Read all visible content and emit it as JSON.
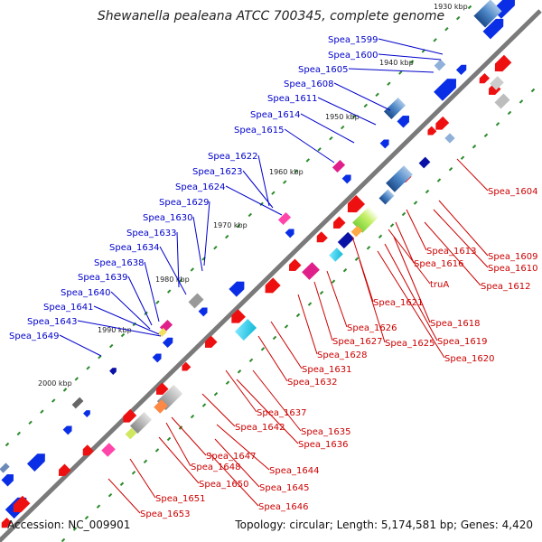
{
  "title": "Shewanella pealeana ATCC 700345, complete genome",
  "accession": "Accession: NC_009901",
  "topology": "Topology: circular; Length: 5,174,581 bp; Genes: 4,420",
  "colors": {
    "plus_label": "#0000cc",
    "minus_label": "#cc0000",
    "backbone": "#777777",
    "tick": "#2a8a2a"
  },
  "kbp_labels": [
    "1930 kbp",
    "1940 kbp",
    "1950 kbp",
    "1960 kbp",
    "1970 kbp",
    "1980 kbp",
    "1990 kbp",
    "2000 kbp"
  ],
  "plus_genes": [
    "Spea_1599",
    "Spea_1600",
    "Spea_1605",
    "Spea_1608",
    "Spea_1611",
    "Spea_1614",
    "Spea_1615",
    "Spea_1622",
    "Spea_1623",
    "Spea_1624",
    "Spea_1629",
    "Spea_1630",
    "Spea_1633",
    "Spea_1634",
    "Spea_1638",
    "Spea_1639",
    "Spea_1640",
    "Spea_1641",
    "Spea_1643",
    "Spea_1649"
  ],
  "minus_genes": [
    "Spea_1604",
    "Spea_1609",
    "Spea_1610",
    "Spea_1612",
    "Spea_1613",
    "Spea_1616",
    "Spea_1621",
    "truA",
    "Spea_1618",
    "Spea_1619",
    "Spea_1620",
    "Spea_1626",
    "Spea_1627",
    "Spea_1625",
    "Spea_1628",
    "Spea_1631",
    "Spea_1632",
    "Spea_1637",
    "Spea_1635",
    "Spea_1636",
    "Spea_1642",
    "Spea_1644",
    "Spea_1647",
    "Spea_1648",
    "Spea_1645",
    "Spea_1646",
    "Spea_1650",
    "Spea_1651",
    "Spea_1653"
  ]
}
